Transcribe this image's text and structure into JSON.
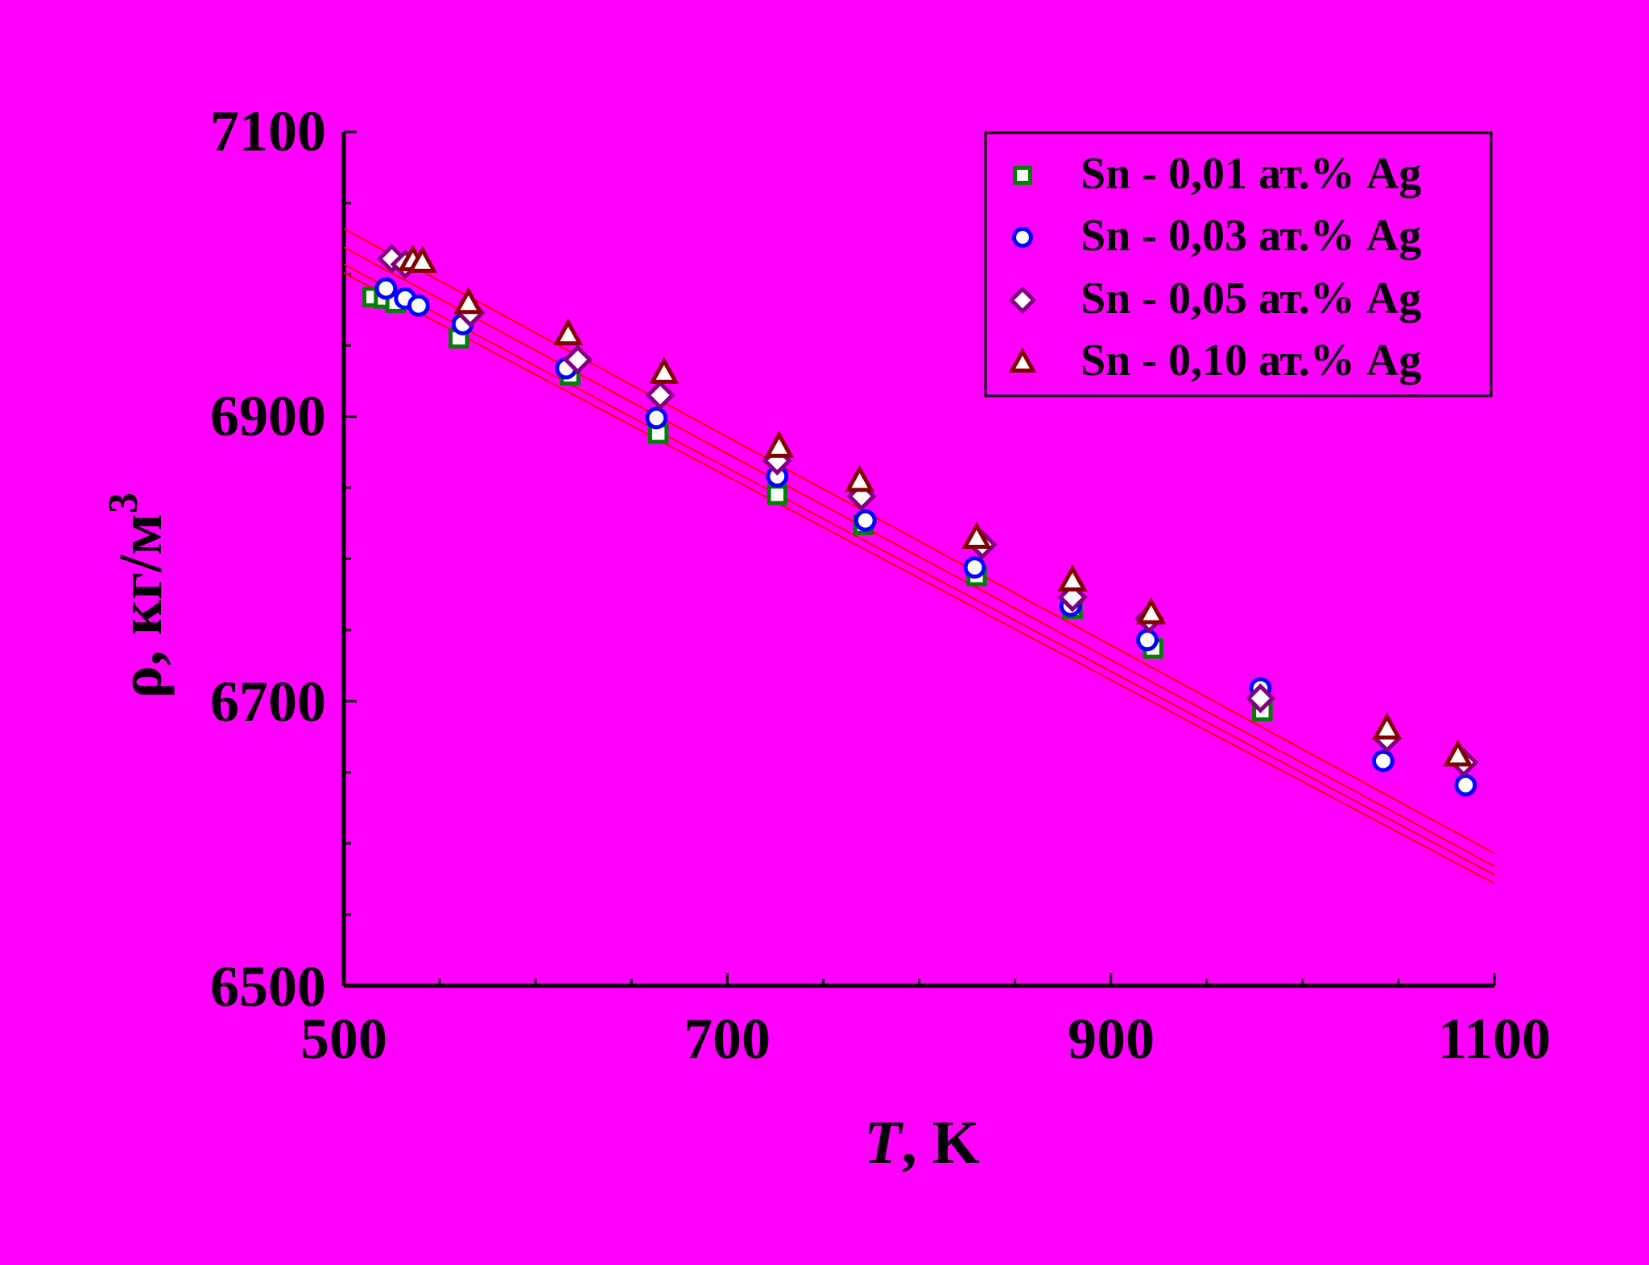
{
  "chart_data": {
    "type": "scatter",
    "title": "",
    "xlabel": {
      "italic": "T",
      "rest": ", K"
    },
    "ylabel": {
      "main": "ρ, кг/м",
      "superscript": "3"
    },
    "xlim": [
      500,
      1100
    ],
    "ylim": [
      6500,
      7100
    ],
    "xticks": [
      "500",
      "700",
      "900",
      "1100"
    ],
    "yticks": [
      "6500",
      "6700",
      "6900",
      "7100"
    ],
    "grid": false,
    "legend_position": "top-right",
    "fit_line_color": "#ff0000",
    "series": [
      {
        "name": "Sn - 0,01 ат.% Ag",
        "marker": "square",
        "color": "#008000",
        "x": [
          515,
          521,
          527,
          560,
          618,
          664,
          726,
          771,
          830,
          880,
          922,
          979
        ],
        "y": [
          6984,
          6983,
          6980,
          6955,
          6929,
          6888,
          6845,
          6824,
          6788,
          6765,
          6737,
          6693
        ],
        "fit": {
          "x": [
            500,
            1100
          ],
          "y": [
            7001,
            6572
          ]
        }
      },
      {
        "name": "Sn - 0,03 ат.% Ag",
        "marker": "circle",
        "color": "#0000ff",
        "x": [
          522,
          532,
          539,
          562,
          616,
          663,
          726,
          772,
          829,
          879,
          919,
          978,
          1042,
          1085
        ],
        "y": [
          6990,
          6983,
          6978,
          6965,
          6934,
          6899,
          6858,
          6827,
          6794,
          6767,
          6743,
          6709,
          6658,
          6641
        ],
        "fit": {
          "x": [
            500,
            1100
          ],
          "y": [
            7007,
            6578
          ]
        }
      },
      {
        "name": "Sn - 0,05 ат.% Ag",
        "marker": "diamond",
        "color": "#800080",
        "x": [
          525,
          532,
          566,
          622,
          665,
          726,
          770,
          833,
          880,
          920,
          978,
          1044,
          1084
        ],
        "y": [
          7011,
          7007,
          6973,
          6940,
          6915,
          6869,
          6844,
          6810,
          6773,
          6758,
          6702,
          6674,
          6657
        ],
        "fit": {
          "x": [
            500,
            1100
          ],
          "y": [
            7019,
            6584
          ]
        }
      },
      {
        "name": "Sn - 0,10 ат.% Ag",
        "marker": "triangle",
        "color": "#800000",
        "x": [
          536,
          541,
          565,
          617,
          667,
          727,
          769,
          830,
          880,
          921,
          1044,
          1081
        ],
        "y": [
          7010,
          7009,
          6980,
          6958,
          6931,
          6879,
          6855,
          6815,
          6785,
          6762,
          6681,
          6662
        ],
        "fit": {
          "x": [
            500,
            1100
          ],
          "y": [
            7032,
            6593
          ]
        }
      }
    ]
  }
}
